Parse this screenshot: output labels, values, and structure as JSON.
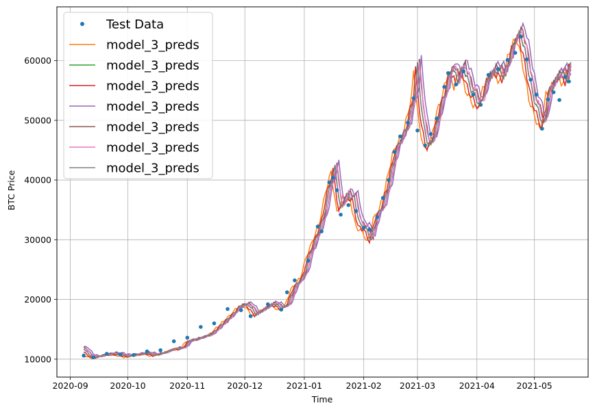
{
  "chart_data": {
    "type": "line",
    "title": "",
    "xlabel": "Time",
    "ylabel": "BTC Price",
    "x_ticks": [
      "2020-09",
      "2020-10",
      "2020-11",
      "2020-12",
      "2021-01",
      "2021-02",
      "2021-03",
      "2021-04",
      "2021-05"
    ],
    "y_ticks": [
      10000,
      20000,
      30000,
      40000,
      50000,
      60000
    ],
    "xlim": [
      "2020-08-25",
      "2021-05-29"
    ],
    "ylim": [
      7000,
      69000
    ],
    "grid": true,
    "legend_position": "top-left",
    "colors": [
      "#1f77b4",
      "#ff7f0e",
      "#2ca02c",
      "#d62728",
      "#9467bd",
      "#8c564b",
      "#e377c2",
      "#7f7f7f"
    ],
    "series": [
      {
        "name": "Test Data",
        "style": "points"
      },
      {
        "name": "model_3_preds",
        "style": "line"
      },
      {
        "name": "model_3_preds",
        "style": "line"
      },
      {
        "name": "model_3_preds",
        "style": "line"
      },
      {
        "name": "model_3_preds",
        "style": "line"
      },
      {
        "name": "model_3_preds",
        "style": "line"
      },
      {
        "name": "model_3_preds",
        "style": "line"
      },
      {
        "name": "model_3_preds",
        "style": "line"
      }
    ],
    "test_data": [
      [
        "2020-09-08",
        10600
      ],
      [
        "2020-09-13",
        10300
      ],
      [
        "2020-09-20",
        10900
      ],
      [
        "2020-09-27",
        10800
      ],
      [
        "2020-10-04",
        10700
      ],
      [
        "2020-10-11",
        11300
      ],
      [
        "2020-10-18",
        11500
      ],
      [
        "2020-10-25",
        13000
      ],
      [
        "2020-11-01",
        13600
      ],
      [
        "2020-11-08",
        15400
      ],
      [
        "2020-11-15",
        16000
      ],
      [
        "2020-11-22",
        18400
      ],
      [
        "2020-11-29",
        18200
      ],
      [
        "2020-12-04",
        17200
      ],
      [
        "2020-12-13",
        19200
      ],
      [
        "2020-12-20",
        18300
      ],
      [
        "2020-12-23",
        21200
      ],
      [
        "2020-12-27",
        23200
      ],
      [
        "2021-01-03",
        26500
      ],
      [
        "2021-01-08",
        32200
      ],
      [
        "2021-01-10",
        31400
      ],
      [
        "2021-01-14",
        39600
      ],
      [
        "2021-01-16",
        40400
      ],
      [
        "2021-01-18",
        38300
      ],
      [
        "2021-01-20",
        34200
      ],
      [
        "2021-01-24",
        35800
      ],
      [
        "2021-01-28",
        34800
      ],
      [
        "2021-02-01",
        32000
      ],
      [
        "2021-02-04",
        31700
      ],
      [
        "2021-02-08",
        33800
      ],
      [
        "2021-02-11",
        37000
      ],
      [
        "2021-02-14",
        40000
      ],
      [
        "2021-02-17",
        44700
      ],
      [
        "2021-02-20",
        47300
      ],
      [
        "2021-02-24",
        49600
      ],
      [
        "2021-02-27",
        53700
      ],
      [
        "2021-03-01",
        48300
      ],
      [
        "2021-03-05",
        45800
      ],
      [
        "2021-03-08",
        47700
      ],
      [
        "2021-03-11",
        50300
      ],
      [
        "2021-03-15",
        55600
      ],
      [
        "2021-03-17",
        57900
      ],
      [
        "2021-03-21",
        56000
      ],
      [
        "2021-03-25",
        58200
      ],
      [
        "2021-03-30",
        54300
      ],
      [
        "2021-04-03",
        52600
      ],
      [
        "2021-04-07",
        57600
      ],
      [
        "2021-04-12",
        58600
      ],
      [
        "2021-04-17",
        60100
      ],
      [
        "2021-04-21",
        61300
      ],
      [
        "2021-04-24",
        64000
      ],
      [
        "2021-04-27",
        60200
      ],
      [
        "2021-04-29",
        56800
      ],
      [
        "2021-05-02",
        54300
      ],
      [
        "2021-05-05",
        48600
      ],
      [
        "2021-05-08",
        53500
      ],
      [
        "2021-05-11",
        54700
      ],
      [
        "2021-05-14",
        53400
      ],
      [
        "2021-05-17",
        57300
      ],
      [
        "2021-05-19",
        56500
      ]
    ],
    "preds_base": [
      [
        "2020-09-08",
        11800
      ],
      [
        "2020-09-11",
        10700
      ],
      [
        "2020-09-14",
        10300
      ],
      [
        "2020-09-18",
        10600
      ],
      [
        "2020-09-23",
        10900
      ],
      [
        "2020-09-27",
        10800
      ],
      [
        "2020-10-01",
        10500
      ],
      [
        "2020-10-07",
        10800
      ],
      [
        "2020-10-11",
        11000
      ],
      [
        "2020-10-15",
        10700
      ],
      [
        "2020-10-20",
        11000
      ],
      [
        "2020-10-25",
        11700
      ],
      [
        "2020-10-30",
        11800
      ],
      [
        "2020-11-02",
        13000
      ],
      [
        "2020-11-08",
        13500
      ],
      [
        "2020-11-14",
        14200
      ],
      [
        "2020-11-20",
        16000
      ],
      [
        "2020-11-25",
        17500
      ],
      [
        "2020-11-29",
        18900
      ],
      [
        "2020-12-03",
        19100
      ],
      [
        "2020-12-07",
        17500
      ],
      [
        "2020-12-12",
        18500
      ],
      [
        "2020-12-16",
        19300
      ],
      [
        "2020-12-21",
        18500
      ],
      [
        "2020-12-24",
        19300
      ],
      [
        "2020-12-27",
        22000
      ],
      [
        "2021-01-01",
        24000
      ],
      [
        "2021-01-04",
        27500
      ],
      [
        "2021-01-08",
        30800
      ],
      [
        "2021-01-11",
        33500
      ],
      [
        "2021-01-14",
        38500
      ],
      [
        "2021-01-17",
        42000
      ],
      [
        "2021-01-20",
        35000
      ],
      [
        "2021-01-23",
        37500
      ],
      [
        "2021-01-27",
        37000
      ],
      [
        "2021-01-30",
        32500
      ],
      [
        "2021-02-02",
        32000
      ],
      [
        "2021-02-05",
        30000
      ],
      [
        "2021-02-08",
        34000
      ],
      [
        "2021-02-11",
        35500
      ],
      [
        "2021-02-14",
        39000
      ],
      [
        "2021-02-18",
        45000
      ],
      [
        "2021-02-21",
        47000
      ],
      [
        "2021-02-24",
        49000
      ],
      [
        "2021-02-28",
        55000
      ],
      [
        "2021-03-01",
        59000
      ],
      [
        "2021-03-04",
        49500
      ],
      [
        "2021-03-07",
        45500
      ],
      [
        "2021-03-10",
        47500
      ],
      [
        "2021-03-13",
        52000
      ],
      [
        "2021-03-16",
        55000
      ],
      [
        "2021-03-19",
        59000
      ],
      [
        "2021-03-22",
        56500
      ],
      [
        "2021-03-25",
        59000
      ],
      [
        "2021-03-28",
        56000
      ],
      [
        "2021-03-31",
        54000
      ],
      [
        "2021-04-03",
        52500
      ],
      [
        "2021-04-07",
        57000
      ],
      [
        "2021-04-11",
        58500
      ],
      [
        "2021-04-15",
        57500
      ],
      [
        "2021-04-18",
        60000
      ],
      [
        "2021-04-21",
        63500
      ],
      [
        "2021-04-24",
        64500
      ],
      [
        "2021-04-27",
        60000
      ],
      [
        "2021-04-30",
        54500
      ],
      [
        "2021-05-03",
        51500
      ],
      [
        "2021-05-06",
        49000
      ],
      [
        "2021-05-09",
        55000
      ],
      [
        "2021-05-12",
        56500
      ],
      [
        "2021-05-15",
        58000
      ],
      [
        "2021-05-18",
        57000
      ],
      [
        "2021-05-20",
        59500
      ]
    ]
  }
}
